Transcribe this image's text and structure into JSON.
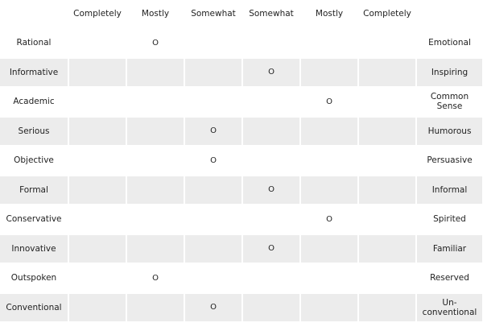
{
  "table": {
    "header": [
      "Completely",
      "Mostly",
      "Somewhat",
      "Somewhat",
      "Mostly",
      "Completely"
    ],
    "rows": [
      {
        "left": "Rational",
        "right": "Emotional",
        "cells": [
          null,
          "O",
          null,
          null,
          null,
          null
        ]
      },
      {
        "left": "Informative",
        "right": "Inspiring",
        "cells": [
          null,
          null,
          null,
          "O",
          null,
          null
        ]
      },
      {
        "left": "Academic",
        "right": "Common Sense",
        "cells": [
          null,
          null,
          null,
          null,
          "O",
          null
        ]
      },
      {
        "left": "Serious",
        "right": "Humorous",
        "cells": [
          null,
          null,
          "O",
          null,
          null,
          null
        ]
      },
      {
        "left": "Objective",
        "right": "Persuasive",
        "cells": [
          null,
          null,
          "O",
          null,
          null,
          null
        ]
      },
      {
        "left": "Formal",
        "right": "Informal",
        "cells": [
          null,
          null,
          null,
          "O",
          null,
          null
        ]
      },
      {
        "left": "Conservative",
        "right": "Spirited",
        "cells": [
          null,
          null,
          null,
          null,
          "O",
          null
        ]
      },
      {
        "left": "Innovative",
        "right": "Familiar",
        "cells": [
          null,
          null,
          null,
          "O",
          null,
          null
        ]
      },
      {
        "left": "Outspoken",
        "right": "Reserved",
        "cells": [
          null,
          "O",
          null,
          null,
          null,
          null
        ]
      },
      {
        "left": "Conventional",
        "right": "Un-conventional",
        "cells": [
          null,
          null,
          "O",
          null,
          null,
          null
        ]
      }
    ]
  }
}
